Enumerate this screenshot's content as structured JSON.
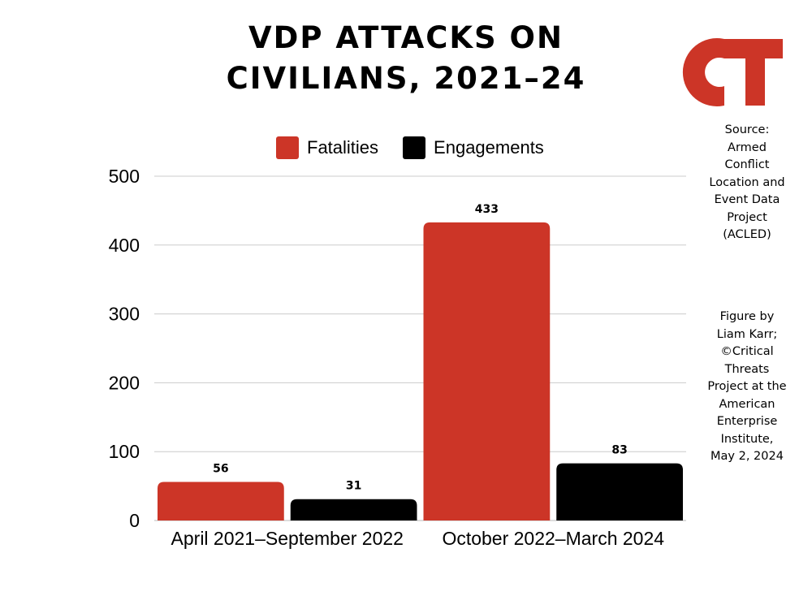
{
  "title_lines": [
    "VDP ATTACKS ON",
    "CIVILIANS, 2021–24"
  ],
  "logo_text": "CT",
  "colors": {
    "fatalities": "#cc3527",
    "engagements": "#000000",
    "grid": "#cccccc",
    "logo": "#cc3527"
  },
  "source_lines": [
    "Source:",
    "Armed",
    "Conflict",
    "Location and",
    "Event Data",
    "Project",
    "(ACLED)"
  ],
  "credit_lines": [
    "Figure by",
    "Liam Karr;",
    "©Critical",
    "Threats",
    "Project at the",
    "American",
    "Enterprise",
    "Institute,",
    "May 2, 2024"
  ],
  "chart_data": {
    "type": "bar",
    "title": "VDP ATTACKS ON CIVILIANS, 2021–24",
    "categories": [
      "April 2021–September 2022",
      "October 2022–March 2024"
    ],
    "series": [
      {
        "name": "Fatalities",
        "values": [
          56,
          433
        ]
      },
      {
        "name": "Engagements",
        "values": [
          31,
          83
        ]
      }
    ],
    "ylim": [
      0,
      500
    ],
    "yticks": [
      "0",
      "100",
      "200",
      "300",
      "400",
      "500"
    ],
    "grid": true,
    "legend": "top-center",
    "xlabel": "",
    "ylabel": ""
  }
}
